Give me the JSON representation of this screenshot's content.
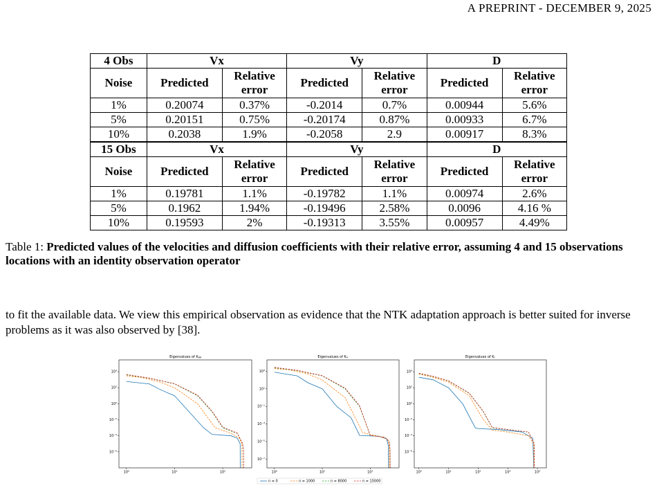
{
  "header": "A PREPRINT - DECEMBER 9, 2025",
  "table": {
    "blocks": [
      {
        "obs": "4 Obs",
        "groups": [
          "Vx",
          "Vy",
          "D"
        ],
        "headers": [
          "Noise",
          "Predicted",
          "Relative error",
          "Predicted",
          "Relative error",
          "Predicted",
          "Relative error"
        ],
        "rows": [
          [
            "1%",
            "0.20074",
            "0.37%",
            "-0.2014",
            "0.7%",
            "0.00944",
            "5.6%"
          ],
          [
            "5%",
            "0.20151",
            "0.75%",
            "-0.20174",
            "0.87%",
            "0.00933",
            "6.7%"
          ],
          [
            "10%",
            "0.2038",
            "1.9%",
            "-0.2058",
            "2.9",
            "0.00917",
            "8.3%"
          ]
        ]
      },
      {
        "obs": "15 Obs",
        "groups": [
          "Vx",
          "Vy",
          "D"
        ],
        "headers": [
          "Noise",
          "Predicted",
          "Relative error",
          "Predicted",
          "Relative error",
          "Predicted",
          "Relative error"
        ],
        "rows": [
          [
            "1%",
            "0.19781",
            "1.1%",
            "-0.19782",
            "1.1%",
            "0.00974",
            "2.6%"
          ],
          [
            "5%",
            "0.1962",
            "1.94%",
            "-0.19496",
            "2.58%",
            "0.0096",
            "4.16 %"
          ],
          [
            "10%",
            "0.19593",
            "2%",
            "-0.19313",
            "3.55%",
            "0.00957",
            "4.49%"
          ]
        ]
      }
    ]
  },
  "caption": {
    "label": "Table 1:",
    "text": "Predicted values of the velocities and diffusion coefficients with their relative error, assuming 4 and 15 observations locations with an identity observation operator"
  },
  "body": "to fit the available data. We view this empirical observation as evidence that the NTK adaptation approach is better suited for inverse problems as it was also observed by [38].",
  "legend": [
    {
      "name": "n = 0",
      "color": "#1f77b4",
      "dash": false
    },
    {
      "name": "n = 1000",
      "color": "#ff7f0e",
      "dash": true
    },
    {
      "name": "n = 8000",
      "color": "#2ca02c",
      "dash": true
    },
    {
      "name": "n = 15000",
      "color": "#d62728",
      "dash": true
    }
  ],
  "chart_data": [
    {
      "type": "line",
      "title": "Eigenvalues of K",
      "title_subscript": "θθ",
      "log_x": true,
      "log_y": true,
      "xlim": [
        0.7,
        400
      ],
      "ylim": [
        1e-08,
        300000
      ],
      "xticks": [
        {
          "value": 1,
          "label": "10⁰"
        },
        {
          "value": 10,
          "label": "10¹"
        },
        {
          "value": 100,
          "label": "10²"
        }
      ],
      "yticks": [
        {
          "value": 10000,
          "label": "10⁴"
        },
        {
          "value": 100,
          "label": "10²"
        },
        {
          "value": 1,
          "label": "10⁰"
        },
        {
          "value": 0.01,
          "label": "10⁻²"
        },
        {
          "value": 0.0001,
          "label": "10⁻⁴"
        },
        {
          "value": 1e-06,
          "label": "10⁻⁶"
        }
      ],
      "series": [
        {
          "x": [
            1,
            3,
            5,
            10,
            20,
            40,
            60,
            150,
            200,
            230,
            231
          ],
          "values": [
            600,
            300,
            60,
            10,
            0.1,
            0.001,
            0.00015,
            0.0001,
            5e-05,
            1e-05,
            1e-08
          ]
        },
        {
          "x": [
            1,
            2,
            5,
            10,
            30,
            70,
            150,
            220,
            250,
            251
          ],
          "values": [
            3000,
            2000,
            500,
            100,
            1,
            0.001,
            0.0002,
            5e-05,
            1e-05,
            1e-08
          ]
        },
        {
          "x": [
            1,
            3,
            10,
            30,
            60,
            100,
            200,
            260,
            270,
            271
          ],
          "values": [
            4000,
            1500,
            300,
            10,
            0.1,
            0.001,
            0.0002,
            1e-05,
            1e-06,
            1e-08
          ]
        },
        {
          "x": [
            1,
            3,
            10,
            30,
            60,
            100,
            200,
            260,
            270,
            271
          ],
          "values": [
            4500,
            1600,
            320,
            12,
            0.12,
            0.0012,
            0.00022,
            1e-05,
            1e-06,
            1e-08
          ]
        }
      ]
    },
    {
      "type": "line",
      "title": "Eigenvalues of K",
      "title_subscript": "rr",
      "log_x": true,
      "log_y": true,
      "xlim": [
        0.7,
        400
      ],
      "ylim": [
        1e-08,
        20000
      ],
      "xticks": [
        {
          "value": 1,
          "label": "10⁰"
        },
        {
          "value": 10,
          "label": "10¹"
        },
        {
          "value": 100,
          "label": "10²"
        }
      ],
      "yticks": [
        {
          "value": 1000,
          "label": "10³"
        },
        {
          "value": 10,
          "label": "10¹"
        },
        {
          "value": 0.1,
          "label": "10⁻¹"
        },
        {
          "value": 0.001,
          "label": "10⁻³"
        },
        {
          "value": 1e-05,
          "label": "10⁻⁵"
        },
        {
          "value": 1e-07,
          "label": "10⁻⁷"
        }
      ],
      "series": [
        {
          "x": [
            1,
            3,
            5,
            10,
            20,
            40,
            60,
            150,
            220,
            240,
            241
          ],
          "values": [
            800,
            300,
            50,
            10,
            0.1,
            0.005,
            5e-05,
            4e-05,
            2e-05,
            3e-06,
            1e-08
          ]
        },
        {
          "x": [
            1,
            2,
            5,
            10,
            30,
            70,
            150,
            230,
            250,
            251
          ],
          "values": [
            2000,
            1500,
            500,
            100,
            1,
            0.0001,
            4e-05,
            2e-05,
            3e-06,
            1e-08
          ]
        },
        {
          "x": [
            1,
            3,
            10,
            30,
            60,
            100,
            200,
            250,
            260,
            261
          ],
          "values": [
            2500,
            1200,
            300,
            10,
            0.1,
            5e-05,
            3e-05,
            1e-05,
            1e-06,
            1e-08
          ]
        },
        {
          "x": [
            1,
            3,
            10,
            30,
            60,
            100,
            200,
            250,
            260,
            261
          ],
          "values": [
            2800,
            1300,
            320,
            12,
            0.12,
            5e-05,
            3e-05,
            1e-05,
            1e-06,
            1e-08
          ]
        }
      ]
    },
    {
      "type": "line",
      "title": "Eigenvalues of K",
      "title_subscript": "r",
      "log_x": true,
      "log_y": true,
      "xlim": [
        0.7,
        20000
      ],
      "ylim": [
        1e-08,
        300000
      ],
      "xticks": [
        {
          "value": 1,
          "label": "10⁰"
        },
        {
          "value": 10,
          "label": "10¹"
        },
        {
          "value": 100,
          "label": "10²"
        },
        {
          "value": 1000,
          "label": "10³"
        },
        {
          "value": 10000,
          "label": "10⁴"
        }
      ],
      "yticks": [
        {
          "value": 10000,
          "label": "10⁴"
        },
        {
          "value": 100,
          "label": "10²"
        },
        {
          "value": 1,
          "label": "10⁰"
        },
        {
          "value": 0.01,
          "label": "10⁻²"
        },
        {
          "value": 0.0001,
          "label": "10⁻⁴"
        },
        {
          "value": 1e-06,
          "label": "10⁻⁶"
        }
      ],
      "series": [
        {
          "x": [
            1,
            3,
            10,
            30,
            80,
            100,
            500,
            3000,
            7000,
            7500
          ],
          "values": [
            2000,
            1000,
            100,
            1,
            0.001,
            0.0008,
            0.0006,
            0.0003,
            5e-05,
            1e-08
          ]
        },
        {
          "x": [
            1,
            3,
            10,
            50,
            150,
            300,
            1000,
            5000,
            7500,
            7600
          ],
          "values": [
            5000,
            2000,
            500,
            10,
            0.01,
            0.0005,
            0.0003,
            0.0001,
            1e-05,
            1e-08
          ]
        },
        {
          "x": [
            1,
            3,
            10,
            50,
            150,
            300,
            1000,
            5000,
            7800,
            7900
          ],
          "values": [
            6000,
            2500,
            700,
            20,
            0.1,
            0.001,
            0.0006,
            0.0003,
            1e-05,
            1e-08
          ]
        },
        {
          "x": [
            1,
            3,
            10,
            50,
            150,
            300,
            1000,
            5000,
            7800,
            7900
          ],
          "values": [
            6500,
            2700,
            750,
            22,
            0.11,
            0.0011,
            0.0006,
            0.0003,
            1e-05,
            1e-08
          ]
        }
      ]
    }
  ]
}
